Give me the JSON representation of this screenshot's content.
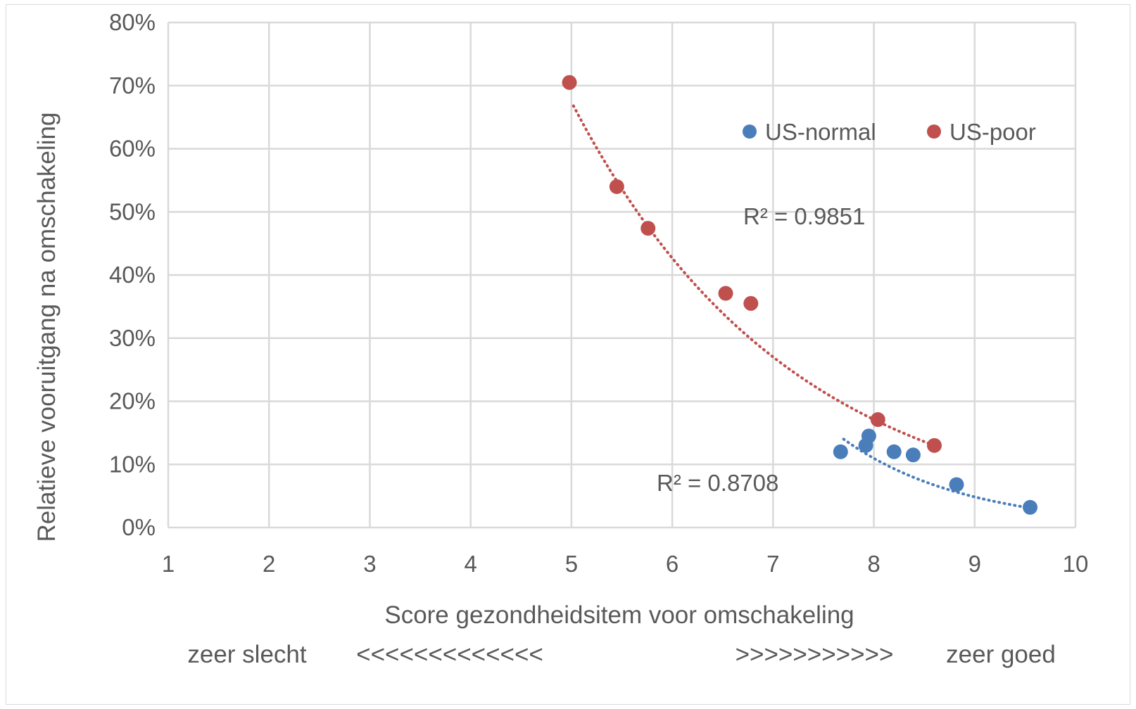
{
  "chart_data": {
    "type": "scatter",
    "title": "",
    "xlabel": "Score gezondheidsitem voor omschakeling",
    "ylabel": "Relatieve vooruitgang na omschakeling",
    "xlim": [
      1,
      10
    ],
    "ylim": [
      0,
      0.8
    ],
    "x_ticks": [
      1,
      2,
      3,
      4,
      5,
      6,
      7,
      8,
      9,
      10
    ],
    "y_ticks": [
      0,
      0.1,
      0.2,
      0.3,
      0.4,
      0.5,
      0.6,
      0.7,
      0.8
    ],
    "y_tick_labels": [
      "0%",
      "10%",
      "20%",
      "30%",
      "40%",
      "50%",
      "60%",
      "70%",
      "80%"
    ],
    "x_tick_labels": [
      "1",
      "2",
      "3",
      "4",
      "5",
      "6",
      "7",
      "8",
      "9",
      "10"
    ],
    "grid": true,
    "legend_position": "top-right",
    "series": [
      {
        "name": "US-normal",
        "color": "#4a7ebb",
        "points": [
          {
            "x": 7.67,
            "y": 0.12
          },
          {
            "x": 7.92,
            "y": 0.13
          },
          {
            "x": 7.95,
            "y": 0.145
          },
          {
            "x": 8.2,
            "y": 0.12
          },
          {
            "x": 8.39,
            "y": 0.115
          },
          {
            "x": 8.82,
            "y": 0.068
          },
          {
            "x": 9.55,
            "y": 0.032
          }
        ],
        "trendline": {
          "r2_label": "R² = 0.8708",
          "x_range": [
            7.7,
            9.55
          ],
          "y_start": 0.14,
          "y_end": 0.031
        }
      },
      {
        "name": "US-poor",
        "color": "#c0504d",
        "points": [
          {
            "x": 4.98,
            "y": 0.705
          },
          {
            "x": 5.45,
            "y": 0.54
          },
          {
            "x": 5.76,
            "y": 0.474
          },
          {
            "x": 6.53,
            "y": 0.371
          },
          {
            "x": 6.78,
            "y": 0.355
          },
          {
            "x": 8.04,
            "y": 0.171
          },
          {
            "x": 8.6,
            "y": 0.13
          }
        ],
        "trendline": {
          "r2_label": "R² = 0.9851",
          "x_range": [
            5.02,
            8.6
          ],
          "y_start": 0.668,
          "y_end": 0.13
        }
      }
    ],
    "annotations": {
      "bottom_left_label": "zeer slecht",
      "bottom_left_arrows": "<<<<<<<<<<<<<",
      "bottom_right_arrows": ">>>>>>>>>>>",
      "bottom_right_label": "zeer goed"
    }
  }
}
